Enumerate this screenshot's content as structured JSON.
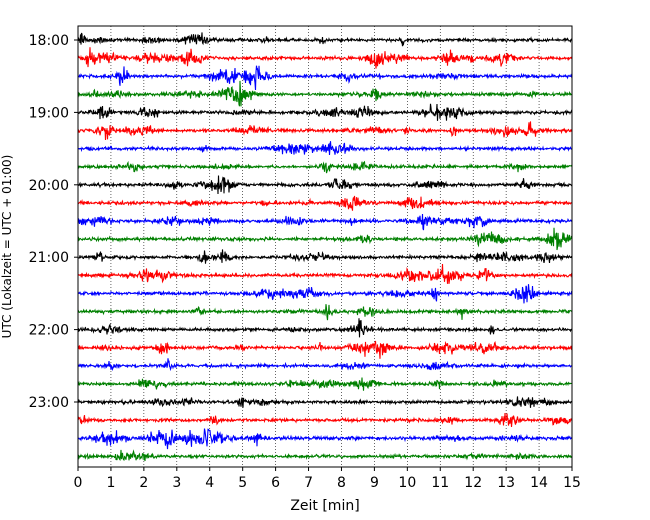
{
  "chart_data": {
    "type": "line",
    "title": "",
    "xlabel": "Zeit  [min]",
    "ylabel": "UTC (Lokalzeit = UTC + 01:00)",
    "xlim": [
      0,
      15
    ],
    "x_ticks": [
      0,
      1,
      2,
      3,
      4,
      5,
      6,
      7,
      8,
      9,
      10,
      11,
      12,
      13,
      14,
      15
    ],
    "x_tick_labels": [
      "0",
      "1",
      "2",
      "3",
      "4",
      "5",
      "6",
      "7",
      "8",
      "9",
      "10",
      "11",
      "12",
      "13",
      "14",
      "15"
    ],
    "y_tick_labels": [
      "18:00",
      "19:00",
      "20:00",
      "21:00",
      "22:00",
      "23:00"
    ],
    "grid": "vertical dotted lines at every minute",
    "trace_minutes": 15,
    "trace_colors": [
      "#000000",
      "#ff0000",
      "#0000ff",
      "#008000"
    ],
    "traces": [
      {
        "start": "18:00",
        "color": "#000000"
      },
      {
        "start": "18:15",
        "color": "#ff0000"
      },
      {
        "start": "18:30",
        "color": "#0000ff"
      },
      {
        "start": "18:45",
        "color": "#008000"
      },
      {
        "start": "19:00",
        "color": "#000000"
      },
      {
        "start": "19:15",
        "color": "#ff0000"
      },
      {
        "start": "19:30",
        "color": "#0000ff"
      },
      {
        "start": "19:45",
        "color": "#008000"
      },
      {
        "start": "20:00",
        "color": "#000000"
      },
      {
        "start": "20:15",
        "color": "#ff0000"
      },
      {
        "start": "20:30",
        "color": "#0000ff"
      },
      {
        "start": "20:45",
        "color": "#008000"
      },
      {
        "start": "21:00",
        "color": "#000000"
      },
      {
        "start": "21:15",
        "color": "#ff0000"
      },
      {
        "start": "21:30",
        "color": "#0000ff"
      },
      {
        "start": "21:45",
        "color": "#008000"
      },
      {
        "start": "22:00",
        "color": "#000000"
      },
      {
        "start": "22:15",
        "color": "#ff0000"
      },
      {
        "start": "22:30",
        "color": "#0000ff"
      },
      {
        "start": "22:45",
        "color": "#008000"
      },
      {
        "start": "23:00",
        "color": "#000000"
      },
      {
        "start": "23:15",
        "color": "#ff0000"
      },
      {
        "start": "23:30",
        "color": "#0000ff"
      },
      {
        "start": "23:45",
        "color": "#008000"
      }
    ]
  }
}
